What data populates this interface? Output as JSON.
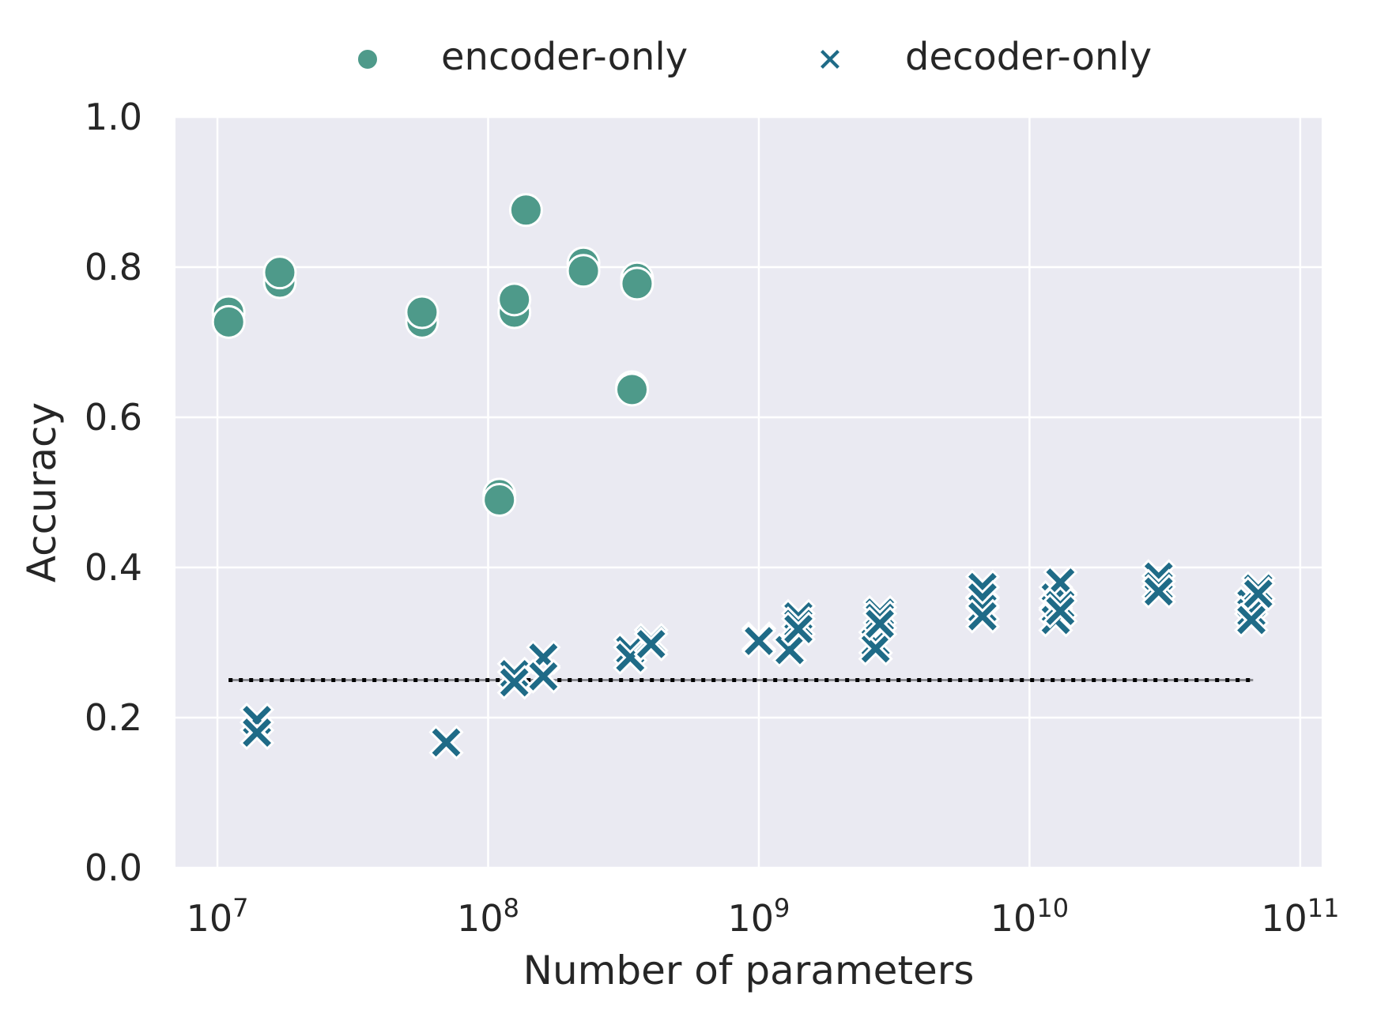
{
  "chart_data": {
    "type": "scatter",
    "xscale": "log",
    "xlim": [
      7000000,
      120000000000
    ],
    "ylim": [
      0,
      1
    ],
    "xlabel": "Number of parameters",
    "ylabel": "Accuracy",
    "grid": true,
    "legend_position": "top-center",
    "x_ticks": [
      {
        "value": 10000000,
        "base": "10",
        "exp": "7"
      },
      {
        "value": 100000000,
        "base": "10",
        "exp": "8"
      },
      {
        "value": 1000000000,
        "base": "10",
        "exp": "9"
      },
      {
        "value": 10000000000,
        "base": "10",
        "exp": "10"
      },
      {
        "value": 100000000000,
        "base": "10",
        "exp": "11"
      }
    ],
    "y_ticks": [
      {
        "value": 0.0,
        "label": "0.0"
      },
      {
        "value": 0.2,
        "label": "0.2"
      },
      {
        "value": 0.4,
        "label": "0.4"
      },
      {
        "value": 0.6,
        "label": "0.6"
      },
      {
        "value": 0.8,
        "label": "0.8"
      },
      {
        "value": 1.0,
        "label": "1.0"
      }
    ],
    "baseline": {
      "y": 0.25,
      "x_start": 11000000,
      "x_end": 67000000000,
      "style": "dotted",
      "color": "#000000"
    },
    "series": [
      {
        "name": "encoder-only",
        "marker": "circle",
        "color": "#4e9a8a",
        "points": [
          {
            "x": 11000000,
            "y": 0.74
          },
          {
            "x": 11000000,
            "y": 0.727
          },
          {
            "x": 17000000,
            "y": 0.78
          },
          {
            "x": 17000000,
            "y": 0.793
          },
          {
            "x": 57000000,
            "y": 0.727
          },
          {
            "x": 57000000,
            "y": 0.74
          },
          {
            "x": 110000000,
            "y": 0.497
          },
          {
            "x": 110000000,
            "y": 0.49
          },
          {
            "x": 125000000,
            "y": 0.74
          },
          {
            "x": 125000000,
            "y": 0.757
          },
          {
            "x": 138000000,
            "y": 0.876
          },
          {
            "x": 225000000,
            "y": 0.805
          },
          {
            "x": 225000000,
            "y": 0.795
          },
          {
            "x": 340000000,
            "y": 0.64
          },
          {
            "x": 340000000,
            "y": 0.637
          },
          {
            "x": 355000000,
            "y": 0.785
          },
          {
            "x": 355000000,
            "y": 0.778
          }
        ]
      },
      {
        "name": "decoder-only",
        "marker": "x",
        "color": "#1f6b87",
        "points": [
          {
            "x": 14000000,
            "y": 0.197
          },
          {
            "x": 14000000,
            "y": 0.18
          },
          {
            "x": 70000000,
            "y": 0.167
          },
          {
            "x": 125000000,
            "y": 0.258
          },
          {
            "x": 125000000,
            "y": 0.247
          },
          {
            "x": 160000000,
            "y": 0.28
          },
          {
            "x": 160000000,
            "y": 0.255
          },
          {
            "x": 335000000,
            "y": 0.29
          },
          {
            "x": 335000000,
            "y": 0.28
          },
          {
            "x": 400000000,
            "y": 0.303
          },
          {
            "x": 400000000,
            "y": 0.298
          },
          {
            "x": 1000000000,
            "y": 0.305
          },
          {
            "x": 1000000000,
            "y": 0.302
          },
          {
            "x": 1300000000,
            "y": 0.29
          },
          {
            "x": 1400000000,
            "y": 0.335
          },
          {
            "x": 1400000000,
            "y": 0.325
          },
          {
            "x": 1400000000,
            "y": 0.318
          },
          {
            "x": 2700000000,
            "y": 0.3
          },
          {
            "x": 2700000000,
            "y": 0.292
          },
          {
            "x": 2800000000,
            "y": 0.34
          },
          {
            "x": 2800000000,
            "y": 0.333
          },
          {
            "x": 2800000000,
            "y": 0.325
          },
          {
            "x": 6700000000,
            "y": 0.374
          },
          {
            "x": 6700000000,
            "y": 0.36
          },
          {
            "x": 6700000000,
            "y": 0.345
          },
          {
            "x": 6700000000,
            "y": 0.335
          },
          {
            "x": 12500000000,
            "y": 0.36
          },
          {
            "x": 12500000000,
            "y": 0.345
          },
          {
            "x": 12500000000,
            "y": 0.33
          },
          {
            "x": 13000000000,
            "y": 0.38
          },
          {
            "x": 13000000000,
            "y": 0.35
          },
          {
            "x": 13000000000,
            "y": 0.342
          },
          {
            "x": 30000000000,
            "y": 0.388
          },
          {
            "x": 30000000000,
            "y": 0.375
          },
          {
            "x": 30000000000,
            "y": 0.368
          },
          {
            "x": 66000000000,
            "y": 0.352
          },
          {
            "x": 66000000000,
            "y": 0.34
          },
          {
            "x": 66000000000,
            "y": 0.33
          },
          {
            "x": 70000000000,
            "y": 0.372
          },
          {
            "x": 70000000000,
            "y": 0.365
          }
        ]
      }
    ]
  }
}
